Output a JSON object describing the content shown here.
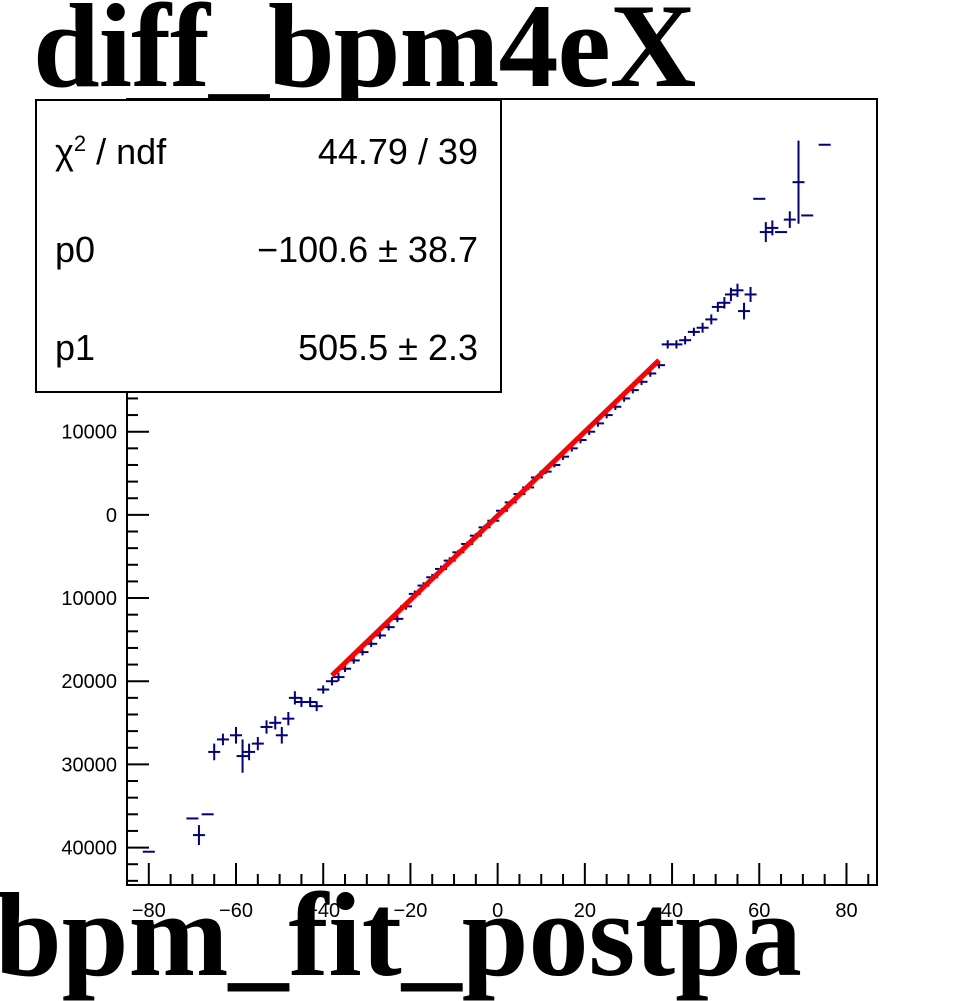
{
  "titles": {
    "top": "diff_bpm4eX",
    "bottom": "bpm_fit_postpa"
  },
  "stats_box": {
    "rows": [
      {
        "name_prefix": "χ",
        "name_sup": "2",
        "name_suffix": " / ndf",
        "value": "44.79 / 39"
      },
      {
        "name": "p0",
        "value": "−100.6 ± 38.7"
      },
      {
        "name": "p1",
        "value": "505.5 ± 2.3"
      }
    ]
  },
  "colors": {
    "data": "#000080",
    "fit": "#ff0000",
    "axis": "#000000"
  },
  "chart_data": {
    "type": "scatter",
    "title": "diff_bpm4eX",
    "xlabel": "",
    "ylabel": "",
    "xlim": [
      -85,
      87
    ],
    "ylim": [
      -44500,
      50000
    ],
    "x_ticks": [
      -80,
      -60,
      -40,
      -20,
      0,
      20,
      40,
      60,
      80
    ],
    "x_tick_labels": [
      "−80",
      "−60",
      "−40",
      "−20",
      "0",
      "20",
      "40",
      "60",
      "80"
    ],
    "y_ticks": [
      10000,
      0,
      -10000,
      -20000,
      -30000,
      -40000
    ],
    "y_tick_labels": [
      "10000",
      "0",
      "10000",
      "20000",
      "30000",
      "40000"
    ],
    "series": [
      {
        "style": "errorbar",
        "points": [
          {
            "x": -80,
            "y": -40500,
            "ey": 0
          },
          {
            "x": -70,
            "y": -36500,
            "ey": 0
          },
          {
            "x": -68.5,
            "y": -38500,
            "ey": 1200
          },
          {
            "x": -66.5,
            "y": -36000,
            "ey": 0
          },
          {
            "x": -65,
            "y": -28500,
            "ey": 1000
          },
          {
            "x": -63,
            "y": -27000,
            "ey": 700
          },
          {
            "x": -60,
            "y": -26500,
            "ey": 1000
          },
          {
            "x": -58.5,
            "y": -29000,
            "ey": 2000
          },
          {
            "x": -57,
            "y": -28500,
            "ey": 1000
          },
          {
            "x": -55,
            "y": -27500,
            "ey": 800
          },
          {
            "x": -53,
            "y": -25500,
            "ey": 800
          },
          {
            "x": -51,
            "y": -25000,
            "ey": 800
          },
          {
            "x": -49.5,
            "y": -26500,
            "ey": 1000
          },
          {
            "x": -48,
            "y": -24500,
            "ey": 800
          },
          {
            "x": -46.5,
            "y": -22000,
            "ey": 800
          },
          {
            "x": -45,
            "y": -22500,
            "ey": 600
          },
          {
            "x": -43,
            "y": -22500,
            "ey": 600
          },
          {
            "x": -41.5,
            "y": -23000,
            "ey": 600
          },
          {
            "x": -40,
            "y": -21000,
            "ey": 500
          },
          {
            "x": -38,
            "y": -20000,
            "ey": 500
          },
          {
            "x": -36.5,
            "y": -19500,
            "ey": 500
          },
          {
            "x": -35,
            "y": -18500,
            "ey": 400
          },
          {
            "x": -33,
            "y": -17500,
            "ey": 400
          },
          {
            "x": -31,
            "y": -16500,
            "ey": 400
          },
          {
            "x": -29,
            "y": -15500,
            "ey": 400
          },
          {
            "x": -27,
            "y": -14500,
            "ey": 400
          },
          {
            "x": -25,
            "y": -13500,
            "ey": 400
          },
          {
            "x": -23,
            "y": -12500,
            "ey": 400
          },
          {
            "x": -21,
            "y": -11000,
            "ey": 400
          },
          {
            "x": -19,
            "y": -9500,
            "ey": 400
          },
          {
            "x": -17,
            "y": -8500,
            "ey": 400
          },
          {
            "x": -15,
            "y": -7500,
            "ey": 400
          },
          {
            "x": -13,
            "y": -6500,
            "ey": 400
          },
          {
            "x": -11,
            "y": -5500,
            "ey": 400
          },
          {
            "x": -9,
            "y": -4500,
            "ey": 300
          },
          {
            "x": -7,
            "y": -3500,
            "ey": 300
          },
          {
            "x": -5,
            "y": -2500,
            "ey": 300
          },
          {
            "x": -3,
            "y": -1500,
            "ey": 300
          },
          {
            "x": -1,
            "y": -700,
            "ey": 300
          },
          {
            "x": 1,
            "y": 500,
            "ey": 300
          },
          {
            "x": 3,
            "y": 1500,
            "ey": 300
          },
          {
            "x": 5,
            "y": 2500,
            "ey": 300
          },
          {
            "x": 7,
            "y": 3300,
            "ey": 300
          },
          {
            "x": 9,
            "y": 4500,
            "ey": 300
          },
          {
            "x": 11,
            "y": 5200,
            "ey": 300
          },
          {
            "x": 13,
            "y": 6000,
            "ey": 300
          },
          {
            "x": 15,
            "y": 7000,
            "ey": 400
          },
          {
            "x": 17,
            "y": 8000,
            "ey": 400
          },
          {
            "x": 19,
            "y": 9000,
            "ey": 400
          },
          {
            "x": 21,
            "y": 10000,
            "ey": 400
          },
          {
            "x": 23,
            "y": 11000,
            "ey": 400
          },
          {
            "x": 25,
            "y": 12000,
            "ey": 400
          },
          {
            "x": 27,
            "y": 13000,
            "ey": 400
          },
          {
            "x": 29,
            "y": 14000,
            "ey": 400
          },
          {
            "x": 31,
            "y": 15000,
            "ey": 400
          },
          {
            "x": 33,
            "y": 16000,
            "ey": 400
          },
          {
            "x": 35,
            "y": 17000,
            "ey": 400
          },
          {
            "x": 37,
            "y": 18000,
            "ey": 400
          },
          {
            "x": 39,
            "y": 20500,
            "ey": 500
          },
          {
            "x": 41,
            "y": 20500,
            "ey": 500
          },
          {
            "x": 43,
            "y": 21000,
            "ey": 500
          },
          {
            "x": 45,
            "y": 22000,
            "ey": 500
          },
          {
            "x": 47,
            "y": 22500,
            "ey": 600
          },
          {
            "x": 49,
            "y": 23500,
            "ey": 600
          },
          {
            "x": 50.5,
            "y": 25000,
            "ey": 600
          },
          {
            "x": 52,
            "y": 25500,
            "ey": 700
          },
          {
            "x": 53.5,
            "y": 26500,
            "ey": 800
          },
          {
            "x": 55,
            "y": 27000,
            "ey": 800
          },
          {
            "x": 56.5,
            "y": 24500,
            "ey": 1000
          },
          {
            "x": 58,
            "y": 26500,
            "ey": 900
          },
          {
            "x": 60,
            "y": 38000,
            "ey": 0
          },
          {
            "x": 61.5,
            "y": 34000,
            "ey": 1200
          },
          {
            "x": 63,
            "y": 34500,
            "ey": 900
          },
          {
            "x": 65,
            "y": 34000,
            "ey": 0
          },
          {
            "x": 67,
            "y": 35500,
            "ey": 1000
          },
          {
            "x": 69,
            "y": 40000,
            "ey": 5000
          },
          {
            "x": 71,
            "y": 36000,
            "ey": 0
          },
          {
            "x": 75,
            "y": 44500,
            "ey": 0
          }
        ]
      },
      {
        "style": "fit-line",
        "x_range": [
          -38,
          37
        ]
      }
    ]
  }
}
